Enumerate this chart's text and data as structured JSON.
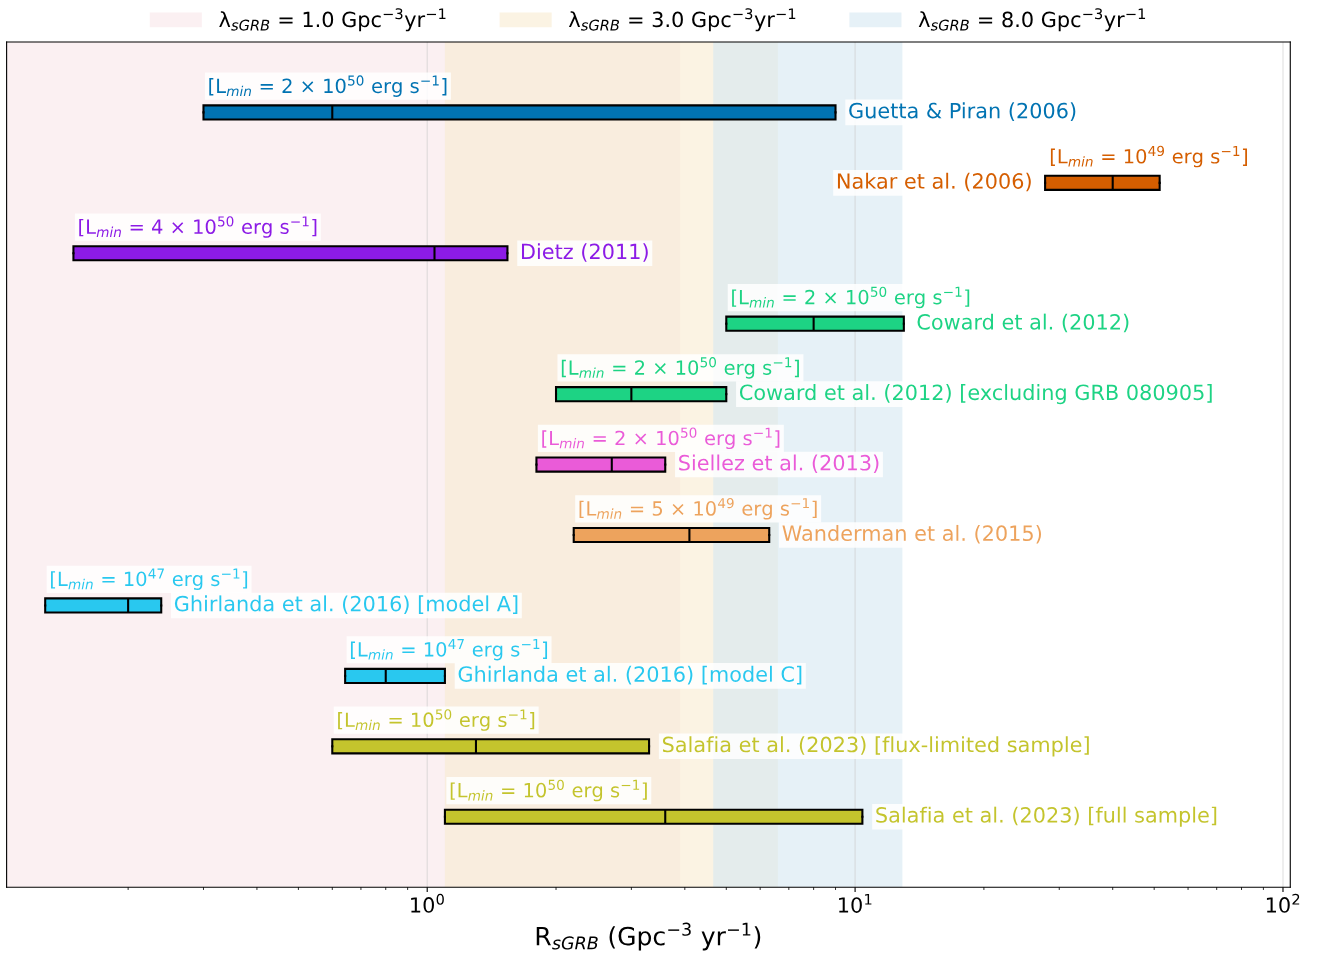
{
  "chart_data": {
    "type": "box",
    "orientation": "horizontal",
    "xlabel": "R$_{sGRB}$ (Gpc$^{−3}$ yr$^{−1}$)",
    "categories": [
      "Guetta & Piran (2006)",
      "Nakar et al. (2006)",
      "Dietz (2011)",
      "Coward et al. (2012)",
      "Coward et al. (2012) [excluding GRB 080905]",
      "Siellez et al. (2013)",
      "Wanderman et al. (2015)",
      "Ghirlanda et al. (2016) [model A]",
      "Ghirlanda et al. (2016) [model C]",
      "Salafia et al. (2023) [flux-limited sample]",
      "Salafia et al. (2023) [full sample]"
    ],
    "boxes": [
      {
        "low": 0.3,
        "q1": 0.3,
        "median": 0.6,
        "q3": 9.0,
        "high": 9.0
      },
      {
        "low": 27.8,
        "q1": 27.8,
        "median": 40,
        "q3": 51.5,
        "high": 51.5
      },
      {
        "low": 0.149,
        "q1": 0.149,
        "median": 1.04,
        "q3": 1.54,
        "high": 1.54
      },
      {
        "low": 5.0,
        "q1": 5.0,
        "median": 8.0,
        "q3": 13.0,
        "high": 13.0
      },
      {
        "low": 2.0,
        "q1": 2.0,
        "median": 3.0,
        "q3": 5.0,
        "high": 5.0
      },
      {
        "low": 1.8,
        "q1": 1.8,
        "median": 2.7,
        "q3": 3.6,
        "high": 3.6
      },
      {
        "low": 2.2,
        "q1": 2.2,
        "median": 4.1,
        "q3": 6.3,
        "high": 6.3
      },
      {
        "low": 0.128,
        "q1": 0.128,
        "median": 0.2,
        "q3": 0.239,
        "high": 0.239
      },
      {
        "low": 0.643,
        "q1": 0.643,
        "median": 0.8,
        "q3": 1.1,
        "high": 1.1
      },
      {
        "low": 0.6,
        "q1": 0.6,
        "median": 1.3,
        "q3": 3.3,
        "high": 3.3
      },
      {
        "low": 1.1,
        "q1": 1.1,
        "median": 3.6,
        "q3": 10.4,
        "high": 10.4
      }
    ],
    "colors": [
      "#0173b2",
      "#d55e00",
      "#8c1be6",
      "#1dd384",
      "#1dd384",
      "#ea5bd8",
      "#eda35d",
      "#29c8ef",
      "#29c8ef",
      "#c4c42d",
      "#c4c42d"
    ],
    "annotations": [
      {
        "text": "[L$_{min}$ = 2 × 10$^{50}$ erg s$^{−1}$]",
        "x": 0.3,
        "y": "Guetta & Piran (2006)"
      },
      {
        "text": "[L$_{min}$ = 10$^{49}$ erg s$^{−1}$]",
        "x": 27.8,
        "y": "Nakar et al. (2006)"
      },
      {
        "text": "[L$_{min}$ = 4 × 10$^{50}$ erg s$^{−1}$]",
        "x": 0.149,
        "y": "Dietz (2011)"
      },
      {
        "text": "[L$_{min}$ = 2 × 10$^{50}$ erg s$^{−1}$]",
        "x": 5.0,
        "y": "Coward et al. (2012)"
      },
      {
        "text": "[L$_{min}$ = 2 × 10$^{50}$ erg s$^{−1}$]",
        "x": 2.0,
        "y": "Coward et al. (2012) [excluding GRB 080905]"
      },
      {
        "text": "[L$_{min}$ = 2 × 10$^{50}$ erg s$^{−1}$]",
        "x": 1.8,
        "y": "Siellez et al. (2013)"
      },
      {
        "text": "[L$_{min}$ = 5 × 10$^{49}$ erg s$^{−1}$]",
        "x": 2.2,
        "y": "Wanderman et al. (2015)"
      },
      {
        "text": "[L$_{min}$ = 10$^{47}$ erg s$^{−1}$]",
        "x": 0.128,
        "y": "Ghirlanda et al. (2016) [model A]"
      },
      {
        "text": "[L$_{min}$ = 10$^{47}$ erg s$^{−1}$]",
        "x": 0.643,
        "y": "Ghirlanda et al. (2016) [model C]"
      },
      {
        "text": "[L$_{min}$ = 10$^{50}$ erg s$^{−1}$]",
        "x": 0.6,
        "y": "Salafia et al. (2023) [flux-limited sample]"
      },
      {
        "text": "[L$_{min}$ = 10$^{50}$ erg s$^{−1}$]",
        "x": 1.1,
        "y": "Salafia et al. (2023) [full sample]"
      }
    ],
    "bands": [
      {
        "axis": "x",
        "from": 0.104,
        "to": 3.9,
        "label": "λ$_{sGRB}$ = 1.0 Gpc$^{−3}$yr$^{−1}$",
        "color": "#f8e6ea"
      },
      {
        "axis": "x",
        "from": 1.1,
        "to": 6.6,
        "label": "λ$_{sGRB}$ = 3.0 Gpc$^{−3}$yr$^{−1}$",
        "color": "#f9ebd1"
      },
      {
        "axis": "x",
        "from": 4.66,
        "to": 12.9,
        "label": "λ$_{sGRB}$ = 8.0 Gpc$^{−3}$yr$^{−1}$",
        "color": "#d6e7f1"
      }
    ],
    "log": "x",
    "xlim": [
      0.104,
      104
    ],
    "xticks": [
      {
        "value": 1,
        "label": "10$^{0}$"
      },
      {
        "value": 10,
        "label": "10$^{1}$"
      },
      {
        "value": 100,
        "label": "10$^{2}$"
      }
    ],
    "grid": "x",
    "legend": "top",
    "tick_labels": "x"
  }
}
